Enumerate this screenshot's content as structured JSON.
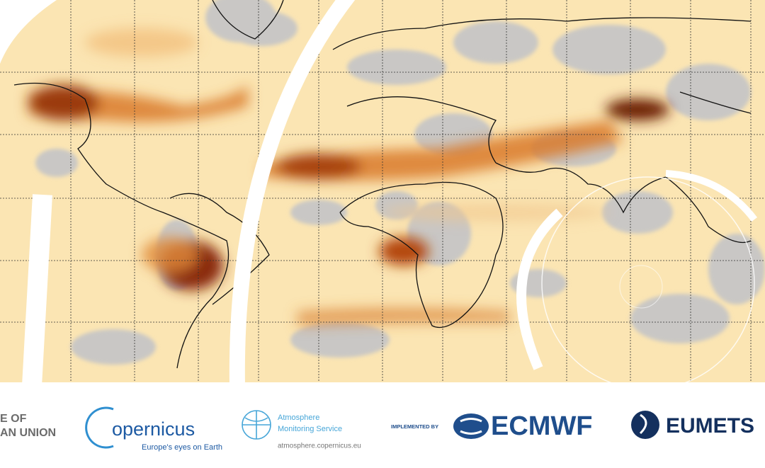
{
  "logos": {
    "eu": {
      "line1": "E OF",
      "line2": "AN UNION"
    },
    "copernicus": {
      "name": "opernicus",
      "tagline": "Europe's eyes on Earth"
    },
    "cams": {
      "line1": "Atmosphere",
      "line2": "Monitoring Service",
      "url": "atmosphere.copernicus.eu"
    },
    "implemented": "IMPLEMENTED BY",
    "ecmwf": "ECMWF",
    "eumetsat": "EUMETS"
  }
}
